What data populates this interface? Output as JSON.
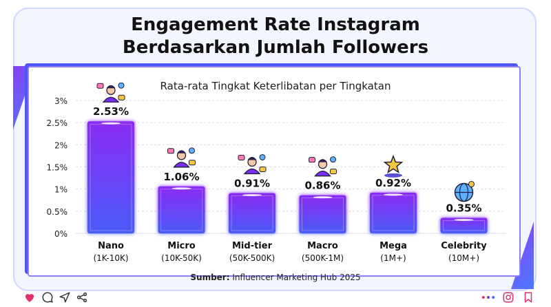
{
  "header": {
    "title_line1": "Engagement Rate Instagram",
    "title_line2": "Berdasarkan Jumlah Followers"
  },
  "chart_data": {
    "type": "bar",
    "title": "Rata-rata Tingkat Keterlibatan per Tingkatan",
    "categories": [
      "Nano",
      "Micro",
      "Mid-tier",
      "Macro",
      "Mega",
      "Celebrity"
    ],
    "category_ranges": [
      "(1K-10K)",
      "(10K-50K)",
      "(50K-500K)",
      "(500K-1M)",
      "(1M+)",
      "(10M+)"
    ],
    "values": [
      2.53,
      1.06,
      0.91,
      0.86,
      0.92,
      0.35
    ],
    "value_labels": [
      "2.53%",
      "1.06%",
      "0.91%",
      "0.86%",
      "0.92%",
      "0.35%"
    ],
    "yticks": [
      "0%",
      "0.5%",
      "1%",
      "1.5%",
      "2%",
      "2.5%",
      "3%"
    ],
    "ylim": [
      0,
      3
    ],
    "grid": true,
    "bar_color": "#7b2cf5",
    "bar_color_end": "#3b6bff",
    "bar_icons": [
      "influencer-icon",
      "influencer-icon",
      "influencer-icon",
      "influencer-icon",
      "star-icon",
      "globe-icon"
    ]
  },
  "source": {
    "label": "Sumber:",
    "text": "Influencer Marketing Hub 2025"
  },
  "footer_icons": [
    "heart-icon",
    "comment-icon",
    "send-icon",
    "share-icon",
    "more-icon",
    "instagram-icon",
    "bookmark-icon"
  ],
  "colors": {
    "accent": "#7b2cf5",
    "accent2": "#3b6bff",
    "heart": "#e1306c"
  }
}
